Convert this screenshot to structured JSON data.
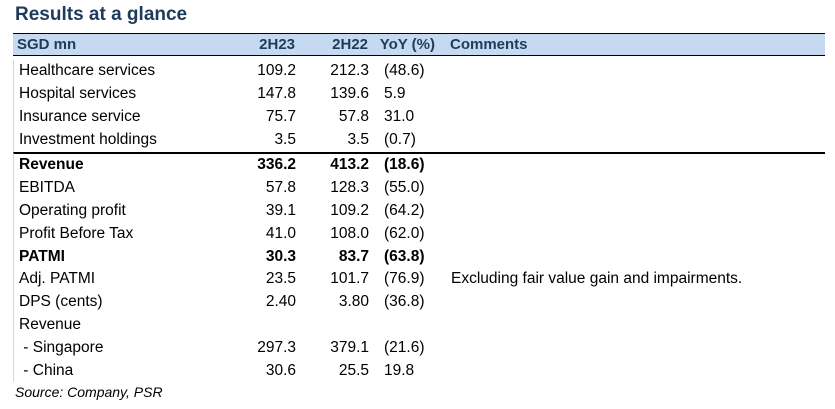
{
  "title": "Results at a glance",
  "headers": [
    "SGD mn",
    "2H23",
    "2H22",
    "YoY (%)",
    "Comments"
  ],
  "rows": [
    {
      "label": "Healthcare services",
      "a": "109.2",
      "b": "212.3",
      "yoy": "(48.6)",
      "comment": ""
    },
    {
      "label": "Hospital services",
      "a": "147.8",
      "b": "139.6",
      "yoy": "5.9",
      "comment": ""
    },
    {
      "label": "Insurance service",
      "a": "75.7",
      "b": "57.8",
      "yoy": "31.0",
      "comment": ""
    },
    {
      "label": "Investment holdings",
      "a": "3.5",
      "b": "3.5",
      "yoy": "(0.7)",
      "comment": ""
    },
    {
      "label": "Revenue",
      "a": "336.2",
      "b": "413.2",
      "yoy": "(18.6)",
      "comment": ""
    },
    {
      "label": "EBITDA",
      "a": "57.8",
      "b": "128.3",
      "yoy": "(55.0)",
      "comment": ""
    },
    {
      "label": "Operating profit",
      "a": "39.1",
      "b": "109.2",
      "yoy": "(64.2)",
      "comment": ""
    },
    {
      "label": "Profit Before Tax",
      "a": "41.0",
      "b": "108.0",
      "yoy": "(62.0)",
      "comment": ""
    },
    {
      "label": "PATMI",
      "a": "30.3",
      "b": "83.7",
      "yoy": "(63.8)",
      "comment": ""
    },
    {
      "label": "Adj. PATMI",
      "a": "23.5",
      "b": "101.7",
      "yoy": "(76.9)",
      "comment": "Excluding fair value gain and impairments."
    },
    {
      "label": "DPS (cents)",
      "a": "2.40",
      "b": "3.80",
      "yoy": "(36.8)",
      "comment": ""
    },
    {
      "label": "Revenue",
      "a": "",
      "b": "",
      "yoy": "",
      "comment": ""
    },
    {
      "label": " - Singapore",
      "a": "297.3",
      "b": "379.1",
      "yoy": "(21.6)",
      "comment": ""
    },
    {
      "label": " - China",
      "a": "30.6",
      "b": "25.5",
      "yoy": "19.8",
      "comment": ""
    }
  ],
  "source": "Source: Company, PSR"
}
